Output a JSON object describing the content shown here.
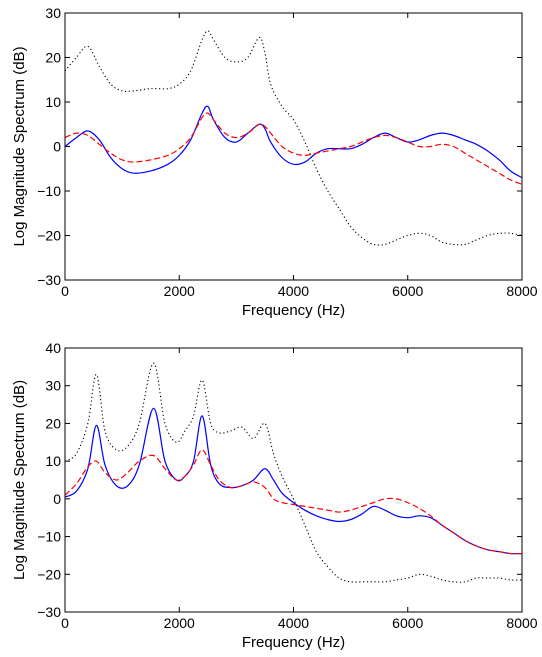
{
  "chart_data": [
    {
      "type": "line",
      "xlabel": "Frequency (Hz)",
      "ylabel": "Log Magnitude Spectrum (dB)",
      "xlim": [
        0,
        8000
      ],
      "ylim": [
        -30,
        30
      ],
      "xticks": [
        0,
        2000,
        4000,
        6000,
        8000
      ],
      "yticks": [
        -30,
        -20,
        -10,
        0,
        10,
        20,
        30
      ],
      "grid": false,
      "series": [
        {
          "style": "dotted",
          "color": "#000000",
          "x": [
            0,
            200,
            400,
            600,
            800,
            1000,
            1200,
            1500,
            1800,
            2000,
            2200,
            2400,
            2500,
            2600,
            2800,
            3000,
            3200,
            3400,
            3500,
            3600,
            3800,
            4000,
            4200,
            4400,
            4600,
            4800,
            5000,
            5200,
            5400,
            5600,
            5800,
            6000,
            6200,
            6400,
            6600,
            6800,
            7000,
            7200,
            7400,
            7600,
            7800,
            8000
          ],
          "y": [
            17,
            20,
            22.5,
            18,
            14,
            12.5,
            12.5,
            13,
            13,
            14,
            17,
            24,
            26,
            24,
            20,
            19,
            20,
            24.5,
            21,
            14,
            9,
            6,
            1,
            -5,
            -10,
            -14,
            -18,
            -20.5,
            -22,
            -22,
            -21,
            -20,
            -19.5,
            -20,
            -21.5,
            -22,
            -22,
            -21,
            -20,
            -19.5,
            -19.5,
            -20
          ]
        },
        {
          "style": "solid",
          "color": "#0000ff",
          "x": [
            0,
            200,
            400,
            600,
            800,
            1000,
            1200,
            1500,
            1800,
            2000,
            2200,
            2400,
            2500,
            2600,
            2800,
            3000,
            3200,
            3400,
            3500,
            3600,
            3800,
            4000,
            4200,
            4400,
            4600,
            4800,
            5000,
            5200,
            5400,
            5600,
            5800,
            6000,
            6200,
            6400,
            6600,
            6800,
            7000,
            7200,
            7400,
            7600,
            7800,
            8000
          ],
          "y": [
            0,
            2,
            3.5,
            1.5,
            -2.5,
            -5,
            -6,
            -5.5,
            -4,
            -2,
            1.5,
            7.5,
            9,
            6,
            2,
            1,
            3,
            5,
            4,
            1,
            -2.5,
            -4,
            -3.5,
            -1.5,
            -0.5,
            -0.5,
            -0.5,
            0.5,
            2,
            3,
            2,
            1,
            1.5,
            2.5,
            3,
            2.5,
            1.5,
            0.5,
            -1,
            -3,
            -5.5,
            -7
          ]
        },
        {
          "style": "dashed",
          "color": "#ff0000",
          "x": [
            0,
            200,
            400,
            600,
            800,
            1000,
            1200,
            1500,
            1800,
            2000,
            2200,
            2400,
            2500,
            2600,
            2800,
            3000,
            3200,
            3400,
            3500,
            3600,
            3800,
            4000,
            4200,
            4400,
            4600,
            4800,
            5000,
            5200,
            5400,
            5600,
            5800,
            6000,
            6200,
            6400,
            6600,
            6800,
            7000,
            7200,
            7400,
            7600,
            7800,
            8000
          ],
          "y": [
            2,
            3,
            2.5,
            0.5,
            -1.5,
            -3,
            -3.5,
            -3,
            -2,
            -0.5,
            2,
            6.5,
            7.5,
            6,
            3,
            2,
            3,
            5,
            4.5,
            3,
            0,
            -1.5,
            -2,
            -1.5,
            -1,
            -0.5,
            0,
            1,
            2,
            2.5,
            2,
            1,
            0,
            0,
            0.5,
            0,
            -1.5,
            -3,
            -4.5,
            -6,
            -7.5,
            -8.5
          ]
        }
      ]
    },
    {
      "type": "line",
      "xlabel": "Frequency (Hz)",
      "ylabel": "Log Magnitude Spectrum (dB)",
      "xlim": [
        0,
        8000
      ],
      "ylim": [
        -30,
        40
      ],
      "xticks": [
        0,
        2000,
        4000,
        6000,
        8000
      ],
      "yticks": [
        -30,
        -20,
        -10,
        0,
        10,
        20,
        30,
        40
      ],
      "grid": false,
      "series": [
        {
          "style": "dotted",
          "color": "#000000",
          "x": [
            0,
            200,
            400,
            550,
            700,
            900,
            1100,
            1300,
            1550,
            1750,
            1950,
            2100,
            2250,
            2400,
            2550,
            2700,
            2900,
            3100,
            3300,
            3500,
            3650,
            3800,
            4000,
            4200,
            4400,
            4600,
            4800,
            5000,
            5200,
            5400,
            5600,
            5800,
            6000,
            6200,
            6400,
            6600,
            6800,
            7000,
            7200,
            7400,
            7600,
            7800,
            8000
          ],
          "y": [
            10,
            12,
            20,
            33,
            18,
            13,
            14,
            20,
            36,
            20,
            15,
            18,
            22,
            31.5,
            20,
            17.5,
            18,
            19,
            16,
            20,
            12,
            6,
            0,
            -7,
            -14,
            -18,
            -21,
            -22,
            -22,
            -22,
            -22,
            -21.5,
            -21,
            -20,
            -20.5,
            -21.5,
            -22,
            -22,
            -21,
            -21,
            -21,
            -21.5,
            -21.5
          ]
        },
        {
          "style": "solid",
          "color": "#0000ff",
          "x": [
            0,
            200,
            400,
            550,
            700,
            900,
            1100,
            1300,
            1550,
            1750,
            1950,
            2100,
            2250,
            2400,
            2550,
            2700,
            2900,
            3100,
            3300,
            3500,
            3650,
            3800,
            4000,
            4200,
            4400,
            4600,
            4800,
            5000,
            5200,
            5400,
            5600,
            5800,
            6000,
            6200,
            6400,
            6600,
            6800,
            7000,
            7200,
            7400,
            7600,
            7800,
            8000
          ],
          "y": [
            0.5,
            2,
            8,
            19.5,
            9,
            3.5,
            3.5,
            9,
            24,
            10,
            5,
            6,
            10,
            22,
            9,
            4,
            3,
            3.5,
            5,
            8,
            5,
            1.5,
            -1,
            -3,
            -4.5,
            -5.5,
            -6,
            -5.5,
            -4,
            -2,
            -3,
            -4.5,
            -5,
            -4.5,
            -5,
            -7,
            -9,
            -11,
            -12.5,
            -13.5,
            -14,
            -14.5,
            -14.5
          ]
        },
        {
          "style": "dashed",
          "color": "#ff0000",
          "x": [
            0,
            200,
            400,
            550,
            700,
            900,
            1100,
            1300,
            1550,
            1750,
            1950,
            2100,
            2250,
            2400,
            2550,
            2700,
            2900,
            3100,
            3300,
            3500,
            3650,
            3800,
            4000,
            4200,
            4400,
            4600,
            4800,
            5000,
            5200,
            5400,
            5600,
            5800,
            6000,
            6200,
            6400,
            6600,
            6800,
            7000,
            7200,
            7400,
            7600,
            7800,
            8000
          ],
          "y": [
            1,
            4,
            8.5,
            10,
            7,
            5,
            7,
            10,
            11.5,
            8,
            5,
            6,
            9,
            13,
            9,
            5,
            3,
            3.5,
            4.5,
            3,
            0,
            -1,
            -1.5,
            -2,
            -2.5,
            -3,
            -3.5,
            -3,
            -2,
            -1,
            0,
            0,
            -1,
            -2.5,
            -4.5,
            -7,
            -9,
            -11,
            -12.5,
            -13.5,
            -14,
            -14.5,
            -14.5
          ]
        }
      ]
    }
  ]
}
